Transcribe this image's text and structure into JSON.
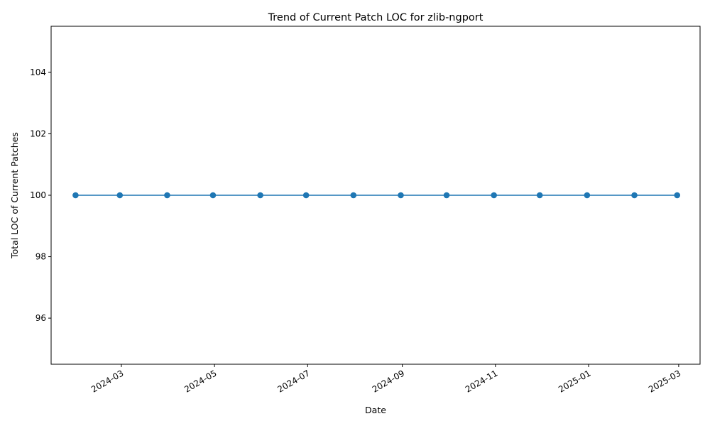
{
  "chart_data": {
    "type": "line",
    "title": "Trend of Current Patch LOC for zlib-ngport",
    "xlabel": "Date",
    "ylabel": "Total LOC of Current Patches",
    "x": [
      "2024-01-31",
      "2024-02-29",
      "2024-03-31",
      "2024-04-30",
      "2024-05-31",
      "2024-06-30",
      "2024-07-31",
      "2024-08-31",
      "2024-09-30",
      "2024-10-31",
      "2024-11-30",
      "2024-12-31",
      "2025-01-31",
      "2025-02-28"
    ],
    "series": [
      {
        "values": [
          100,
          100,
          100,
          100,
          100,
          100,
          100,
          100,
          100,
          100,
          100,
          100,
          100,
          100
        ],
        "color": "#1f77b4",
        "marker": "circle"
      }
    ],
    "xlim": [
      "2024-01-15",
      "2025-03-15"
    ],
    "ylim": [
      94.5,
      105.5
    ],
    "x_ticks": [
      "2024-03",
      "2024-05",
      "2024-07",
      "2024-09",
      "2024-11",
      "2025-01",
      "2025-03"
    ],
    "y_ticks": [
      96,
      98,
      100,
      102,
      104
    ],
    "grid": false,
    "legend": "none"
  }
}
